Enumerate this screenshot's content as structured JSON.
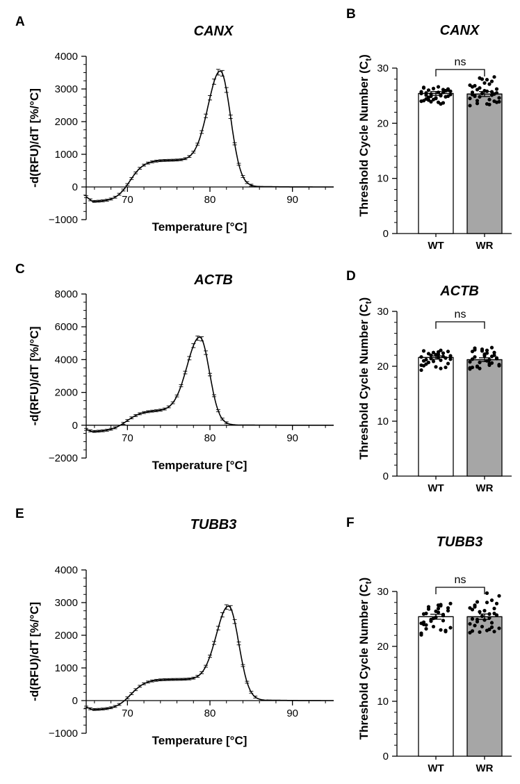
{
  "figure": {
    "panel_letters": [
      "A",
      "B",
      "C",
      "D",
      "E",
      "F"
    ]
  },
  "colors": {
    "ink": "#000000",
    "wt_fill": "#ffffff",
    "wr_fill": "#a6a6a6",
    "dot": "#000000"
  },
  "chart_data": [
    {
      "id": "A",
      "type": "line",
      "title": "CANX",
      "xlabel": "Temperature [°C]",
      "ylabel": "-d(RFU)/dT [%/°C]",
      "xlim": [
        65,
        95
      ],
      "ylim": [
        -1000,
        4000
      ],
      "x_ticks": [
        70,
        80,
        90
      ],
      "y_ticks": [
        -1000,
        0,
        1000,
        2000,
        3000,
        4000
      ],
      "y_tick_labels": [
        "−1000",
        "0",
        "1000",
        "2000",
        "3000",
        "4000"
      ],
      "curve": {
        "start_val": -300,
        "dip": -450,
        "plateau": 820,
        "plateau_start": 73.5,
        "plateau_end": 77,
        "peak_x": 81.3,
        "peak": 3620,
        "sigma_up": 1.5,
        "sigma_down": 1.15,
        "rise_center": 70.3,
        "rise_width": 0.85
      },
      "error_scale": 0.025
    },
    {
      "id": "B",
      "type": "bar",
      "title": "CANX",
      "ylabel": "Threshold Cycle Number (C",
      "ylabel_sub": "t",
      "categories": [
        "WT",
        "WR"
      ],
      "values": [
        25.4,
        25.3
      ],
      "errors": [
        0.35,
        0.45
      ],
      "ylim": [
        0,
        30
      ],
      "y_ticks": [
        0,
        10,
        20,
        30
      ],
      "y_minor_step": 2,
      "sig_label": "ns",
      "points": [
        [
          24.0,
          25.6,
          26.4,
          23.5,
          25.1,
          26.1,
          24.7,
          25.9,
          23.9,
          24.9,
          26.3,
          25.2,
          24.5,
          25.7,
          26.6,
          24.1,
          25.0,
          25.5,
          23.7,
          26.0,
          24.8,
          25.3,
          26.2,
          24.3,
          25.8,
          24.6,
          25.4,
          23.8,
          26.5,
          25.1,
          24.4,
          25.6,
          24.2,
          25.9,
          24.9,
          26.0
        ],
        [
          23.2,
          27.9,
          25.6,
          24.3,
          26.8,
          25.1,
          23.6,
          28.4,
          24.8,
          26.2,
          25.4,
          23.9,
          27.3,
          24.5,
          25.8,
          26.6,
          23.4,
          25.0,
          27.6,
          24.1,
          25.3,
          26.4,
          23.8,
          28.0,
          24.6,
          25.9,
          26.9,
          23.5,
          25.2,
          27.1,
          24.9,
          25.7,
          26.1,
          24.0,
          28.2,
          25.5
        ]
      ]
    },
    {
      "id": "C",
      "type": "line",
      "title": "ACTB",
      "xlabel": "Temperature [°C]",
      "ylabel": "-d(RFU)/dT [%/°C]",
      "xlim": [
        65,
        95
      ],
      "ylim": [
        -2000,
        8000
      ],
      "x_ticks": [
        70,
        80,
        90
      ],
      "y_ticks": [
        -2000,
        0,
        2000,
        4000,
        6000,
        8000
      ],
      "y_tick_labels": [
        "−2000",
        "0",
        "2000",
        "4000",
        "6000",
        "8000"
      ],
      "curve": {
        "start_val": -250,
        "dip": -400,
        "plateau": 900,
        "plateau_start": 72.5,
        "plateau_end": 74.5,
        "peak_x": 78.8,
        "peak": 5450,
        "sigma_up": 1.55,
        "sigma_down": 1.1,
        "rise_center": 69.9,
        "rise_width": 0.95
      },
      "error_scale": 0.025
    },
    {
      "id": "D",
      "type": "bar",
      "title": "ACTB",
      "ylabel": "Threshold Cycle Number (C",
      "ylabel_sub": "t",
      "categories": [
        "WT",
        "WR"
      ],
      "values": [
        21.6,
        21.2
      ],
      "errors": [
        0.3,
        0.35
      ],
      "ylim": [
        0,
        30
      ],
      "y_ticks": [
        0,
        10,
        20,
        30
      ],
      "y_minor_step": 2,
      "sig_label": "ns",
      "points": [
        [
          19.3,
          22.6,
          21.0,
          22.9,
          20.4,
          21.8,
          22.3,
          19.8,
          21.4,
          22.7,
          20.9,
          21.9,
          22.1,
          20.2,
          21.6,
          22.8,
          19.6,
          21.2,
          22.4,
          20.7,
          21.5,
          22.0,
          20.5,
          22.5,
          21.3,
          19.9,
          21.7,
          22.2,
          20.1,
          21.1
        ],
        [
          19.5,
          22.9,
          21.3,
          20.2,
          23.3,
          21.8,
          19.9,
          22.5,
          20.7,
          21.5,
          23.1,
          20.1,
          22.2,
          19.7,
          21.0,
          22.7,
          20.5,
          21.7,
          23.4,
          20.0,
          22.0,
          19.6,
          21.4,
          22.8,
          20.3,
          21.9,
          20.8,
          22.4,
          19.8,
          21.2,
          23.0,
          20.6
        ]
      ]
    },
    {
      "id": "E",
      "type": "line",
      "title": "TUBB3",
      "xlabel": "Temperature [°C]",
      "ylabel": "-d(RFU)/dT [%/°C]",
      "xlim": [
        65,
        95
      ],
      "ylim": [
        -1000,
        4000
      ],
      "x_ticks": [
        70,
        80,
        90
      ],
      "y_ticks": [
        -1000,
        0,
        1000,
        2000,
        3000,
        4000
      ],
      "y_tick_labels": [
        "−1000",
        "0",
        "1000",
        "2000",
        "3000",
        "4000"
      ],
      "curve": {
        "start_val": -200,
        "dip": -280,
        "plateau": 650,
        "plateau_start": 73.5,
        "plateau_end": 77.5,
        "peak_x": 82.3,
        "peak": 2950,
        "sigma_up": 1.5,
        "sigma_down": 1.15,
        "rise_center": 70.4,
        "rise_width": 0.9
      },
      "error_scale": 0.025
    },
    {
      "id": "F",
      "type": "bar",
      "title": "TUBB3",
      "ylabel": "Threshold Cycle Number (C",
      "ylabel_sub": "t",
      "categories": [
        "WT",
        "WR"
      ],
      "values": [
        25.4,
        25.4
      ],
      "errors": [
        0.45,
        0.5
      ],
      "ylim": [
        0,
        30
      ],
      "y_ticks": [
        0,
        10,
        20,
        30
      ],
      "y_minor_step": 2,
      "sig_label": "ns",
      "points": [
        [
          22.1,
          26.9,
          24.4,
          27.6,
          23.2,
          25.8,
          27.2,
          22.7,
          24.9,
          26.5,
          23.6,
          27.8,
          25.3,
          22.4,
          26.2,
          24.0,
          27.4,
          23.9,
          25.6,
          26.8,
          22.9,
          24.6,
          27.0,
          25.1,
          23.4,
          26.4,
          24.2,
          27.5,
          25.9,
          23.0,
          26.0,
          24.7
        ],
        [
          22.5,
          29.7,
          25.0,
          23.1,
          27.5,
          24.3,
          28.1,
          22.7,
          26.3,
          25.7,
          23.6,
          29.2,
          24.8,
          27.0,
          22.9,
          26.7,
          25.2,
          23.8,
          28.4,
          24.5,
          26.0,
          22.6,
          27.8,
          25.5,
          23.3,
          26.5,
          24.1,
          28.0,
          22.8,
          25.9,
          27.2,
          23.5,
          24.9,
          26.9
        ]
      ]
    }
  ]
}
